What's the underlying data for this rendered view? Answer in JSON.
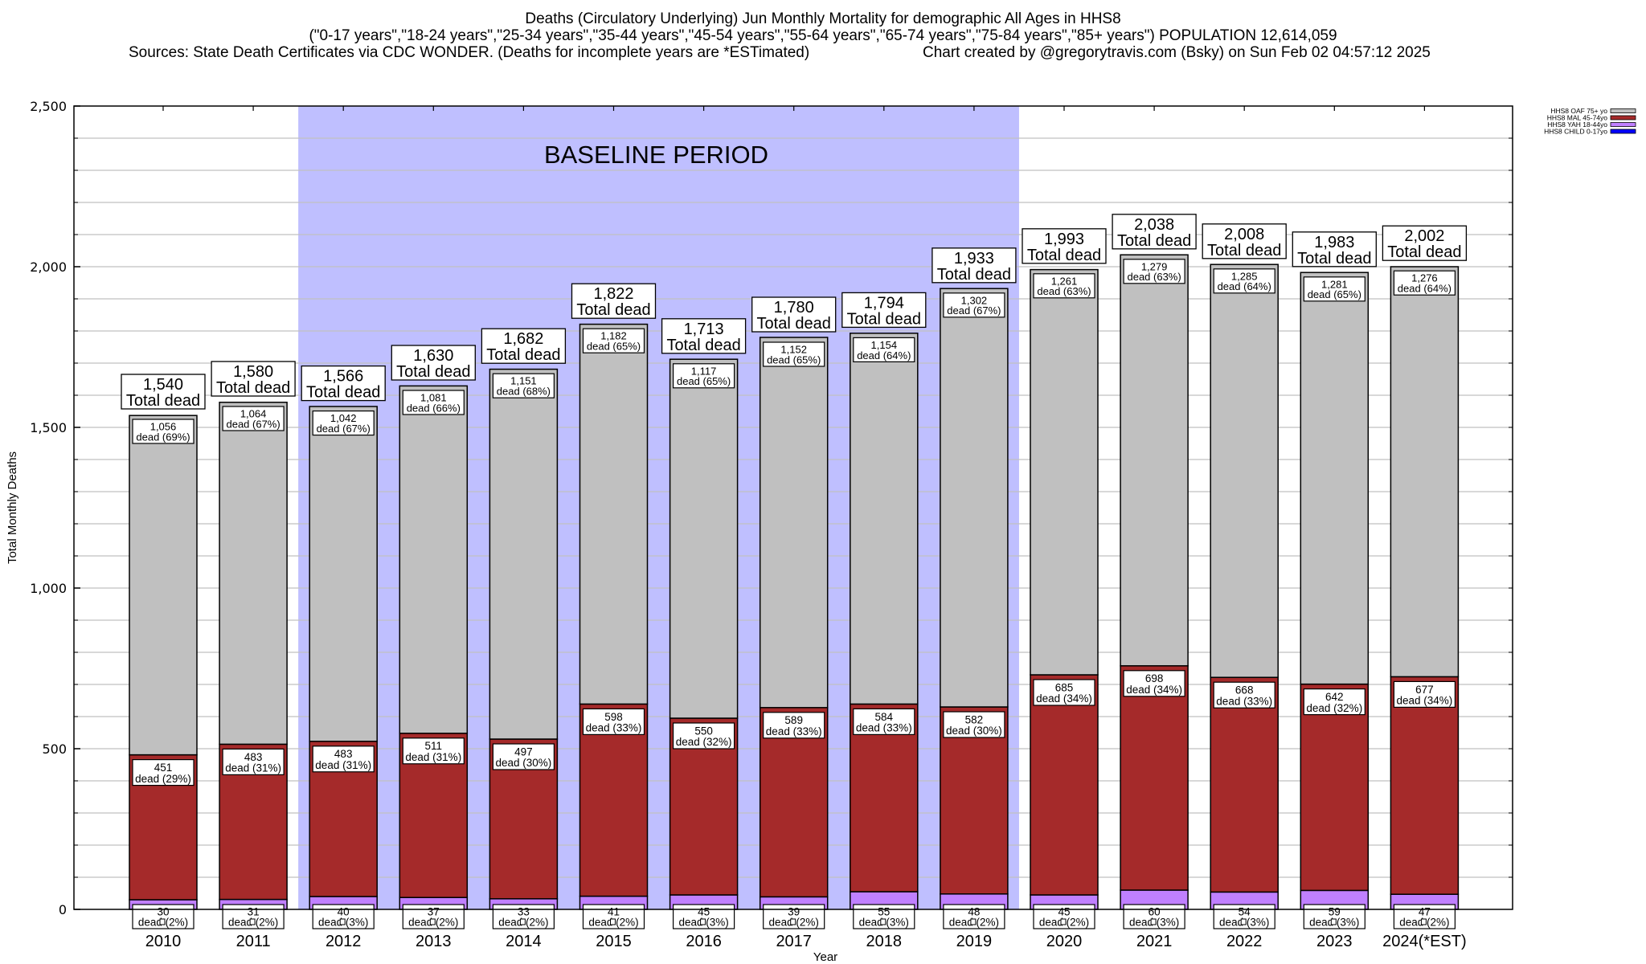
{
  "chart_data": {
    "type": "bar",
    "stacked": true,
    "title": "Deaths (Circulatory Underlying) Jun Monthly Mortality for demographic All Ages in HHS8",
    "subtitle": "(\"0-17 years\",\"18-24 years\",\"25-34 years\",\"35-44 years\",\"45-54 years\",\"55-64 years\",\"65-74 years\",\"75-84 years\",\"85+ years\") POPULATION 12,614,059",
    "sources": "Sources: State Death Certificates via CDC WONDER. (Deaths for incomplete years are *ESTimated)",
    "credit": "Chart created by @gregorytravis.com (Bsky) on Sun Feb 02 04:57:12 2025",
    "xlabel": "Year",
    "ylabel": "Total Monthly Deaths",
    "ylim": [
      0,
      2500
    ],
    "yticks": [
      0,
      500,
      1000,
      1500,
      2000,
      2500
    ],
    "ytick_labels": [
      "0",
      "500",
      "1,000",
      "1,500",
      "2,000",
      "2,500"
    ],
    "grid": true,
    "grid_step": 100,
    "categories": [
      "2010",
      "2011",
      "2012",
      "2013",
      "2014",
      "2015",
      "2016",
      "2017",
      "2018",
      "2019",
      "2020",
      "2021",
      "2022",
      "2023",
      "2024(*EST)"
    ],
    "annotation": {
      "text": "BASELINE PERIOD",
      "from_category": "2012",
      "to_category": "2019",
      "color": "#bfbfff"
    },
    "totals": [
      1540,
      1580,
      1566,
      1630,
      1682,
      1822,
      1713,
      1780,
      1794,
      1933,
      1993,
      2038,
      2008,
      1983,
      2002
    ],
    "total_labels": [
      "1,540",
      "1,580",
      "1,566",
      "1,630",
      "1,682",
      "1,822",
      "1,713",
      "1,780",
      "1,794",
      "1,933",
      "1,993",
      "2,038",
      "2,008",
      "1,983",
      "2,002"
    ],
    "total_suffix": "Total dead",
    "series": [
      {
        "name": "HHS8 CHILD 0-17yo",
        "color": "#0000ff",
        "values": [
          0,
          0,
          0,
          0,
          0,
          0,
          0,
          0,
          0,
          0,
          0,
          0,
          0,
          0,
          0
        ]
      },
      {
        "name": "HHS8 YAH 18-44yo",
        "color": "#c080ff",
        "values": [
          30,
          31,
          40,
          37,
          33,
          41,
          45,
          39,
          55,
          48,
          45,
          60,
          54,
          59,
          47
        ],
        "labels": [
          "30",
          "31",
          "40",
          "37",
          "33",
          "41",
          "45",
          "39",
          "55",
          "48",
          "45",
          "60",
          "54",
          "59",
          "47"
        ],
        "pct": [
          "(2%)",
          "(2%)",
          "(3%)",
          "(2%)",
          "(2%)",
          "(2%)",
          "(3%)",
          "(2%)",
          "(3%)",
          "(2%)",
          "(2%)",
          "(3%)",
          "(3%)",
          "(3%)",
          "(2%)"
        ]
      },
      {
        "name": "HHS8 MAL 45-74yo",
        "color": "#a52a2a",
        "values": [
          451,
          483,
          483,
          511,
          497,
          598,
          550,
          589,
          584,
          582,
          685,
          698,
          668,
          642,
          677
        ],
        "labels": [
          "451",
          "483",
          "483",
          "511",
          "497",
          "598",
          "550",
          "589",
          "584",
          "582",
          "685",
          "698",
          "668",
          "642",
          "677"
        ],
        "pct": [
          "(29%)",
          "(31%)",
          "(31%)",
          "(31%)",
          "(30%)",
          "(33%)",
          "(32%)",
          "(33%)",
          "(33%)",
          "(30%)",
          "(34%)",
          "(34%)",
          "(33%)",
          "(32%)",
          "(34%)"
        ]
      },
      {
        "name": "HHS8 OAF 75+ yo",
        "color": "#c0c0c0",
        "values": [
          1056,
          1064,
          1042,
          1081,
          1151,
          1182,
          1117,
          1152,
          1154,
          1302,
          1261,
          1279,
          1285,
          1281,
          1276
        ],
        "labels": [
          "1,056",
          "1,064",
          "1,042",
          "1,081",
          "1,151",
          "1,182",
          "1,117",
          "1,152",
          "1,154",
          "1,302",
          "1,261",
          "1,279",
          "1,285",
          "1,281",
          "1,276"
        ],
        "pct": [
          "(69%)",
          "(67%)",
          "(67%)",
          "(66%)",
          "(68%)",
          "(65%)",
          "(65%)",
          "(65%)",
          "(64%)",
          "(67%)",
          "(63%)",
          "(63%)",
          "(64%)",
          "(65%)",
          "(64%)"
        ]
      }
    ],
    "segment_word": "dead",
    "legend": {
      "placement": "top-right",
      "entries": [
        "HHS8 OAF 75+ yo",
        "HHS8 MAL 45-74yo",
        "HHS8 YAH 18-44yo",
        "HHS8 CHILD 0-17yo"
      ]
    }
  }
}
